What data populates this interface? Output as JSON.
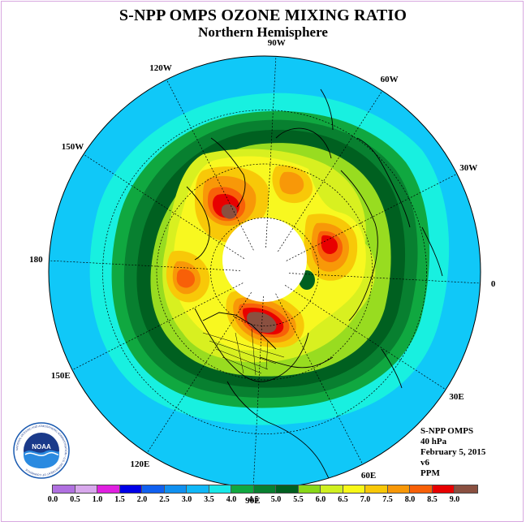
{
  "header": {
    "title": "S-NPP OMPS OZONE MIXING RATIO",
    "subtitle": "Northern Hemisphere"
  },
  "longitude_labels": [
    {
      "key": "lon-90e",
      "text": "90E",
      "lon": 90
    },
    {
      "key": "lon-60e",
      "text": "60E",
      "lon": 60
    },
    {
      "key": "lon-30e",
      "text": "30E",
      "lon": 30
    },
    {
      "key": "lon-0",
      "text": "0",
      "lon": 0
    },
    {
      "key": "lon-30w",
      "text": "30W",
      "lon": -30
    },
    {
      "key": "lon-60w",
      "text": "60W",
      "lon": -60
    },
    {
      "key": "lon-90w",
      "text": "90W",
      "lon": -90
    },
    {
      "key": "lon-120w",
      "text": "120W",
      "lon": -120
    },
    {
      "key": "lon-150w",
      "text": "150W",
      "lon": -150
    },
    {
      "key": "lon-180",
      "text": "180",
      "lon": 180
    },
    {
      "key": "lon-150e",
      "text": "150E",
      "lon": 150
    },
    {
      "key": "lon-120e",
      "text": "120E",
      "lon": 120
    }
  ],
  "info": {
    "instrument": "S-NPP OMPS",
    "level": "40 hPa",
    "date": "February 5, 2015",
    "version": "v6",
    "units": "PPM"
  },
  "logo": {
    "name": "NOAA",
    "ring_text": "NATIONAL OCEANIC AND ATMOSPHERIC ADMINISTRATION • U.S. DEPARTMENT OF COMMERCE"
  },
  "colorbar": {
    "ticks": [
      "0.0",
      "0.5",
      "1.0",
      "1.5",
      "2.0",
      "2.5",
      "3.0",
      "3.5",
      "4.0",
      "4.5",
      "5.0",
      "5.5",
      "6.0",
      "6.5",
      "7.0",
      "7.5",
      "8.0",
      "8.5",
      "9.0"
    ],
    "colors": [
      "#b070e0",
      "#d8a8ec",
      "#e020e0",
      "#0000e8",
      "#1060f0",
      "#1090f0",
      "#10b8f8",
      "#18e8e8",
      "#10a840",
      "#088030",
      "#006020",
      "#88d818",
      "#d0f020",
      "#f8f818",
      "#f8c808",
      "#f89808",
      "#f86008",
      "#e80000",
      "#8a5040"
    ]
  },
  "map_colors": {
    "ocean_outside": "#ffffff",
    "band_3_0": "#10c8f8",
    "band_3_5": "#18f0e0",
    "band_4_0": "#10a840",
    "band_4_5": "#088030",
    "band_5_0": "#006020",
    "band_5_5": "#98dc20",
    "band_6_0": "#d8f020",
    "band_6_5": "#f8f820",
    "band_7_0": "#f8c808",
    "band_7_5": "#f89808",
    "band_8_0": "#f86008",
    "band_8_5": "#e80000",
    "band_9_0": "#8a5040",
    "polar_night": "#ffffff"
  }
}
